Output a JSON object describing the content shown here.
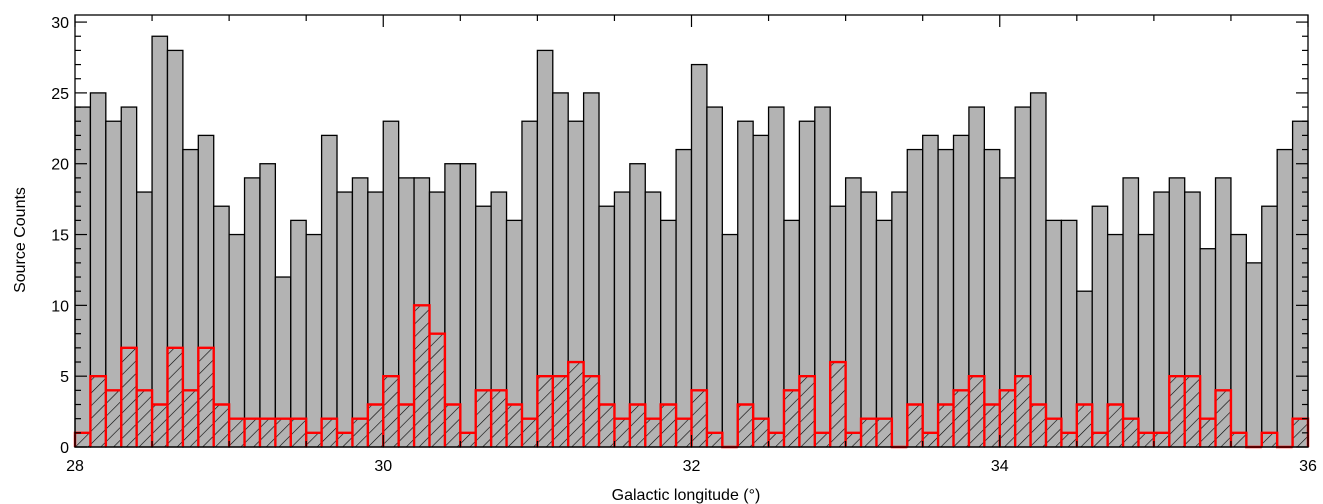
{
  "chart_data": {
    "type": "bar",
    "xlabel": "Galactic longitude (°)",
    "ylabel": "Source Counts",
    "xlim": [
      28,
      36
    ],
    "ylim": [
      0,
      30.5
    ],
    "bin_width": 0.1,
    "x_ticks": [
      28,
      30,
      32,
      34,
      36
    ],
    "x_tick_labels": [
      "28",
      "30",
      "32",
      "34",
      "36"
    ],
    "y_ticks": [
      0,
      5,
      10,
      15,
      20,
      25,
      30
    ],
    "y_tick_labels": [
      "0",
      "5",
      "10",
      "15",
      "20",
      "25",
      "30"
    ],
    "x_minor_ticks_per_major": 4,
    "y_minor_ticks_per_major": 5,
    "grid": false,
    "colors": {
      "all_fill": "#b3b3b3",
      "all_edge": "#000000",
      "subset_edge": "#ff0000",
      "subset_hatch": "#000000"
    },
    "series": [
      {
        "style": "filled-gray",
        "values": [
          24,
          25,
          23,
          24,
          18,
          29,
          28,
          21,
          22,
          17,
          15,
          19,
          20,
          12,
          16,
          15,
          22,
          18,
          19,
          18,
          23,
          19,
          19,
          18,
          20,
          20,
          17,
          18,
          16,
          23,
          28,
          25,
          23,
          25,
          17,
          18,
          20,
          18,
          16,
          21,
          27,
          24,
          15,
          23,
          22,
          24,
          16,
          23,
          24,
          17,
          19,
          18,
          16,
          18,
          21,
          22,
          21,
          22,
          24,
          21,
          19,
          24,
          25,
          16,
          16,
          11,
          17,
          15,
          19,
          15,
          18,
          19,
          18,
          14,
          19,
          15,
          13,
          17,
          21,
          23
        ]
      },
      {
        "style": "hatched-red-outline",
        "values": [
          1,
          5,
          4,
          7,
          4,
          3,
          7,
          4,
          7,
          3,
          2,
          2,
          2,
          2,
          2,
          1,
          2,
          1,
          2,
          3,
          5,
          3,
          10,
          8,
          3,
          1,
          4,
          4,
          3,
          2,
          5,
          5,
          6,
          5,
          3,
          2,
          3,
          2,
          3,
          2,
          4,
          1,
          0,
          3,
          2,
          1,
          4,
          5,
          1,
          6,
          1,
          2,
          2,
          0,
          3,
          1,
          3,
          4,
          5,
          3,
          4,
          5,
          3,
          2,
          1,
          3,
          1,
          3,
          2,
          1,
          1,
          5,
          5,
          2,
          4,
          1,
          0,
          1,
          0,
          2
        ]
      }
    ]
  }
}
